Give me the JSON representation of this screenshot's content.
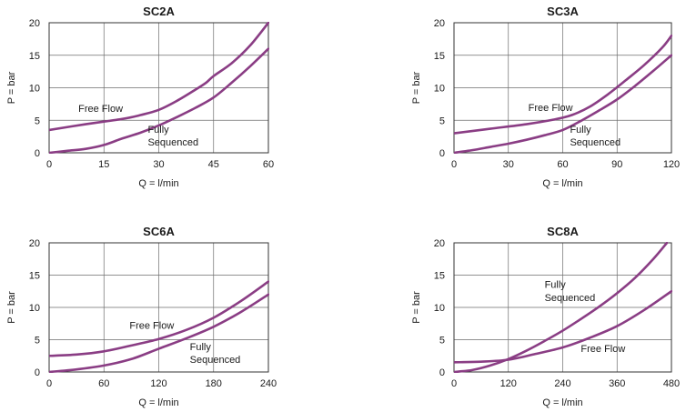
{
  "colors": {
    "curve": "#8a3d84"
  },
  "chart_data": [
    {
      "type": "line",
      "title": "SC2A",
      "xlabel": "Q = l/min",
      "ylabel": "P = bar",
      "xlim": [
        0,
        60
      ],
      "ylim": [
        0,
        20
      ],
      "xticks": [
        0,
        15,
        30,
        45,
        60
      ],
      "yticks": [
        0,
        5,
        10,
        15,
        20
      ],
      "grid": true,
      "series": [
        {
          "name": "Free Flow",
          "x": [
            0,
            10,
            20,
            25,
            30,
            35,
            40,
            43,
            45,
            50,
            55,
            60
          ],
          "y": [
            3.5,
            4.4,
            5.2,
            5.8,
            6.6,
            8.0,
            9.7,
            10.8,
            11.8,
            13.8,
            16.5,
            20.0
          ]
        },
        {
          "name": "Fully Sequenced",
          "x": [
            0,
            5,
            10,
            15,
            20,
            25,
            30,
            35,
            40,
            45,
            50,
            55,
            60
          ],
          "y": [
            0,
            0.3,
            0.6,
            1.2,
            2.2,
            3.1,
            4.2,
            5.5,
            6.9,
            8.5,
            10.8,
            13.3,
            16.0
          ]
        }
      ],
      "annotations": [
        {
          "text": "Free Flow",
          "x": 8,
          "y": 6.3
        },
        {
          "text": "Fully",
          "x": 27,
          "y": 3.1
        },
        {
          "text": "Sequenced",
          "x": 27,
          "y": 1.1
        }
      ]
    },
    {
      "type": "line",
      "title": "SC3A",
      "xlabel": "Q = l/min",
      "ylabel": "P = bar",
      "xlim": [
        0,
        120
      ],
      "ylim": [
        0,
        20
      ],
      "xticks": [
        0,
        30,
        60,
        90,
        120
      ],
      "yticks": [
        0,
        5,
        10,
        15,
        20
      ],
      "grid": true,
      "series": [
        {
          "name": "Free Flow",
          "x": [
            0,
            20,
            40,
            55,
            65,
            75,
            85,
            95,
            105,
            115,
            120
          ],
          "y": [
            3.0,
            3.7,
            4.4,
            5.1,
            5.8,
            7.1,
            9.0,
            11.2,
            13.5,
            16.2,
            18.0
          ]
        },
        {
          "name": "Fully Sequenced",
          "x": [
            0,
            10,
            20,
            30,
            40,
            50,
            60,
            70,
            80,
            90,
            100,
            110,
            120
          ],
          "y": [
            0,
            0.4,
            0.9,
            1.4,
            2.0,
            2.7,
            3.5,
            4.9,
            6.5,
            8.2,
            10.3,
            12.6,
            15.0
          ]
        }
      ],
      "annotations": [
        {
          "text": "Free Flow",
          "x": 41,
          "y": 6.4
        },
        {
          "text": "Fully",
          "x": 64,
          "y": 3.1
        },
        {
          "text": "Sequenced",
          "x": 64,
          "y": 1.1
        }
      ]
    },
    {
      "type": "line",
      "title": "SC6A",
      "xlabel": "Q = l/min",
      "ylabel": "P = bar",
      "xlim": [
        0,
        240
      ],
      "ylim": [
        0,
        20
      ],
      "xticks": [
        0,
        60,
        120,
        180,
        240
      ],
      "yticks": [
        0,
        5,
        10,
        15,
        20
      ],
      "grid": true,
      "series": [
        {
          "name": "Free Flow",
          "x": [
            0,
            30,
            60,
            90,
            120,
            150,
            180,
            210,
            240
          ],
          "y": [
            2.5,
            2.7,
            3.2,
            4.1,
            5.1,
            6.5,
            8.4,
            11.0,
            14.0
          ]
        },
        {
          "name": "Fully Sequenced",
          "x": [
            0,
            30,
            60,
            90,
            120,
            150,
            180,
            210,
            240
          ],
          "y": [
            0,
            0.4,
            1.0,
            2.0,
            3.6,
            5.2,
            7.0,
            9.3,
            12.0
          ]
        }
      ],
      "annotations": [
        {
          "text": "Free Flow",
          "x": 88,
          "y": 6.7
        },
        {
          "text": "Fully",
          "x": 154,
          "y": 3.4
        },
        {
          "text": "Sequenced",
          "x": 154,
          "y": 1.4
        }
      ]
    },
    {
      "type": "line",
      "title": "SC8A",
      "xlabel": "Q = l/min",
      "ylabel": "P = bar",
      "xlim": [
        0,
        480
      ],
      "ylim": [
        0,
        20
      ],
      "xticks": [
        0,
        120,
        240,
        360,
        480
      ],
      "yticks": [
        0,
        5,
        10,
        15,
        20
      ],
      "grid": true,
      "series": [
        {
          "name": "Fully Sequenced",
          "x": [
            0,
            40,
            80,
            120,
            160,
            200,
            240,
            280,
            320,
            360,
            400,
            440,
            470
          ],
          "y": [
            0,
            0.3,
            1.0,
            2.0,
            3.3,
            4.8,
            6.4,
            8.2,
            10.1,
            12.2,
            14.6,
            17.5,
            20.0
          ]
        },
        {
          "name": "Free Flow",
          "x": [
            0,
            60,
            120,
            180,
            240,
            300,
            360,
            420,
            480
          ],
          "y": [
            1.5,
            1.6,
            1.9,
            2.8,
            3.8,
            5.3,
            7.1,
            9.6,
            12.5
          ]
        }
      ],
      "annotations": [
        {
          "text": "Fully",
          "x": 200,
          "y": 13.0
        },
        {
          "text": "Sequenced",
          "x": 200,
          "y": 11.0
        },
        {
          "text": "Free Flow",
          "x": 280,
          "y": 3.1
        }
      ]
    }
  ]
}
